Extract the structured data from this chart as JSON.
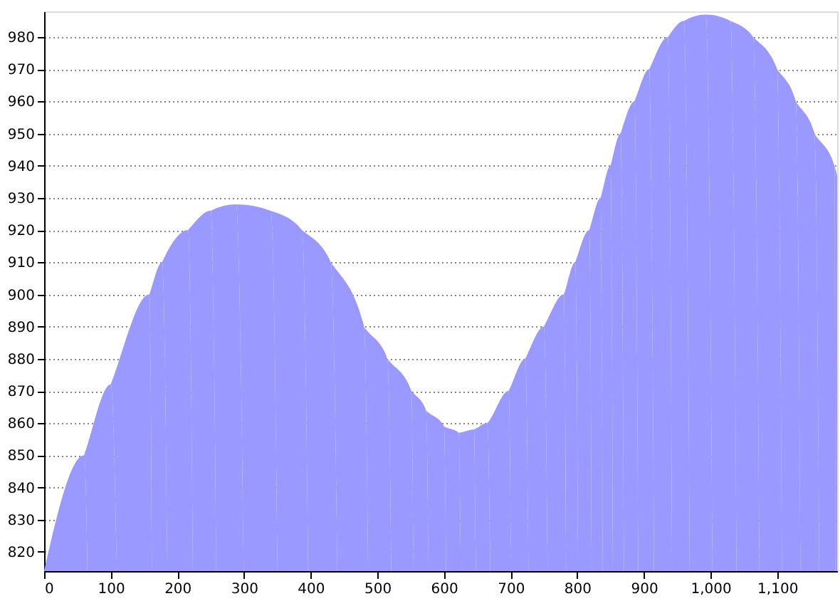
{
  "chart_data": {
    "type": "area",
    "xlim": [
      0,
      1190
    ],
    "ylim": [
      814,
      988
    ],
    "xticks": [
      0,
      100,
      200,
      300,
      400,
      500,
      600,
      700,
      800,
      900,
      {
        "value": 1000,
        "label": "1,000"
      },
      {
        "value": 1100,
        "label": "1,100"
      }
    ],
    "yticks": [
      820,
      830,
      840,
      850,
      860,
      870,
      880,
      890,
      900,
      910,
      920,
      930,
      940,
      950,
      960,
      970,
      980
    ],
    "grid": "y",
    "line_style": "dotted",
    "series": [
      {
        "color": "#9999ff",
        "x": [
          0,
          60,
          100,
          158,
          177,
          216,
          250,
          288,
          340,
          387,
          430,
          480,
          515,
          551,
          573,
          600,
          622,
          645,
          665,
          697,
          722,
          750,
          780,
          797,
          818,
          835,
          850,
          865,
          886,
          908,
          936,
          960,
          993,
          1030,
          1064,
          1100,
          1128,
          1156,
          1186,
          1190
        ],
        "values": [
          814,
          850,
          872,
          900,
          910,
          920,
          926,
          928,
          926,
          920,
          910,
          890,
          880,
          870,
          864,
          859,
          857,
          858,
          860,
          870,
          880,
          890,
          900,
          910,
          920,
          930,
          940,
          950,
          960,
          970,
          980,
          985,
          987,
          985,
          980,
          970,
          960,
          950,
          940,
          937
        ]
      }
    ]
  }
}
